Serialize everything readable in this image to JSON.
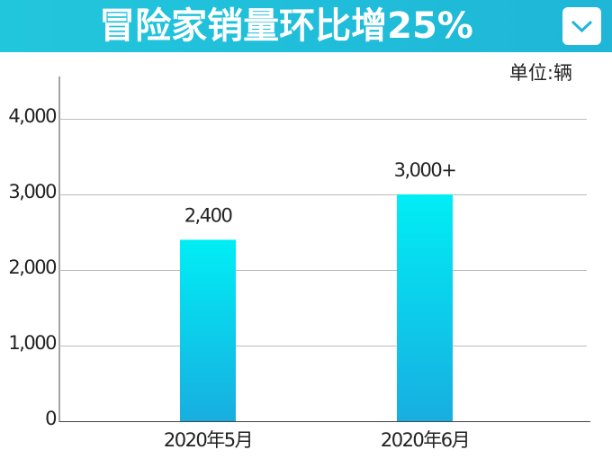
{
  "chart_data": {
    "type": "bar",
    "title": "冒险家销量环比增25%",
    "unit_label": "单位:辆",
    "categories": [
      "2020年5月",
      "2020年6月"
    ],
    "values": [
      2400,
      3000
    ],
    "value_labels": [
      "2,400",
      "3,000+"
    ],
    "gradient": [
      "#00eef5",
      "#18aee0"
    ],
    "ylim": [
      0,
      4500
    ],
    "yticks": [
      0,
      {
        "value": 1000,
        "label": "1,000"
      },
      {
        "value": 2000,
        "label": "2,000"
      },
      {
        "value": 3000,
        "label": "3,000"
      },
      {
        "value": 4000,
        "label": "4,000"
      }
    ],
    "grid": true
  }
}
